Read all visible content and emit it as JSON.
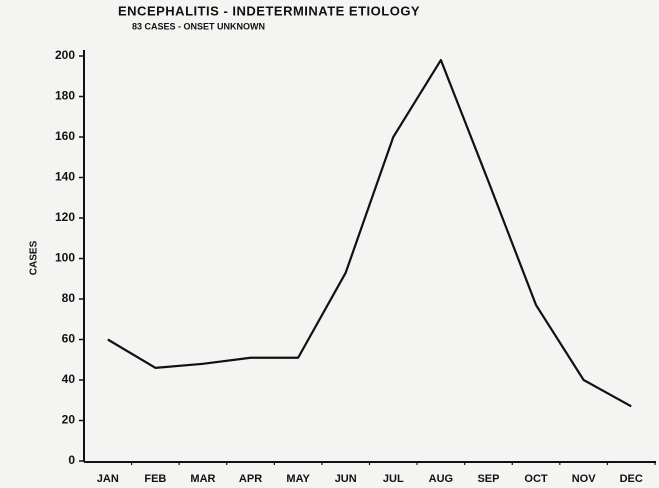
{
  "chart_data": {
    "type": "line",
    "title": "ENCEPHALITIS - INDETERMINATE ETIOLOGY",
    "subtitle": "83 CASES - ONSET UNKNOWN",
    "y_label": "CASES",
    "categories": [
      "JAN",
      "FEB",
      "MAR",
      "APR",
      "MAY",
      "JUN",
      "JUL",
      "AUG",
      "SEP",
      "OCT",
      "NOV",
      "DEC"
    ],
    "values": [
      60,
      46,
      48,
      51,
      51,
      93,
      160,
      198,
      138,
      77,
      40,
      27
    ],
    "color": "#111111",
    "ylim": [
      0,
      200
    ],
    "yticks": [
      0,
      20,
      40,
      60,
      80,
      100,
      120,
      140,
      160,
      180,
      200
    ],
    "grid": false
  }
}
